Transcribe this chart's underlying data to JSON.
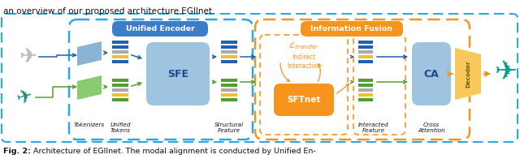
{
  "title": "an overview of our proposed architecture EGIInet.",
  "caption_bold": "Fig. 2:",
  "caption_rest": " Architecture of EGIInet. The modal alignment is conducted by Unified En-",
  "bg": "#ffffff",
  "cyan_dash": "#29abe2",
  "orange_dash": "#f7941d",
  "blue_label_bg": "#3d7cc9",
  "orange_label_bg": "#f7941d",
  "sfe_bg": "#9ec4e0",
  "ca_bg": "#9ec4e0",
  "sftnet_bg": "#f7941d",
  "decoder_bg": "#f9c85a",
  "tok_blue": "#8ab4d4",
  "tok_green": "#8aca70",
  "bar_blue1": "#2060b0",
  "bar_blue2": "#2060b0",
  "bar_gray": "#aaaaaa",
  "bar_yellow": "#f0c030",
  "bar_green1": "#50a030",
  "bar_green2": "#50a030",
  "arr_blue": "#2060b0",
  "arr_green": "#50a030",
  "arr_orange": "#f7941d",
  "text_dark": "#111111",
  "label_italic_color": "#111111",
  "orange_inner_dash": "#f7941d",
  "sftnet_fill": "#f7941d",
  "ltransfer_color": "#f7941d"
}
